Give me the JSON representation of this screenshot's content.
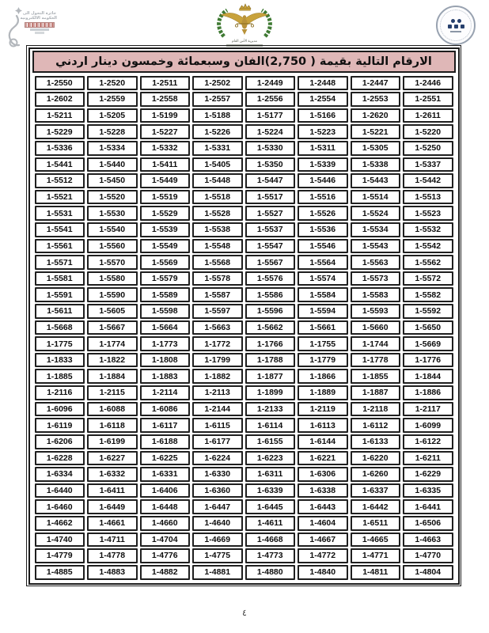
{
  "header": {
    "award_logo": {
      "icon": "egov-award-logo",
      "lines": [
        "جائزة التحول الى",
        "الحكومة الالكترونية"
      ]
    },
    "emblem": {
      "icon": "jordan-public-security-emblem",
      "caption": "مديرية الأمن العام"
    },
    "seal": {
      "icon": "round-certification-seal"
    }
  },
  "title": {
    "text": "الارقام التالية بقيمة  ( 2,750)الفان وسبعمائة وخمسون دينار اردني",
    "amount": "2,750",
    "background_color": "#dfb7b7"
  },
  "table": {
    "columns": 8,
    "rows": [
      [
        "1-2550",
        "1-2520",
        "1-2511",
        "1-2502",
        "1-2449",
        "1-2448",
        "1-2447",
        "1-2446"
      ],
      [
        "1-2602",
        "1-2559",
        "1-2558",
        "1-2557",
        "1-2556",
        "1-2554",
        "1-2553",
        "1-2551"
      ],
      [
        "1-5211",
        "1-5205",
        "1-5199",
        "1-5188",
        "1-5177",
        "1-5166",
        "1-2620",
        "1-2611"
      ],
      [
        "1-5229",
        "1-5228",
        "1-5227",
        "1-5226",
        "1-5224",
        "1-5223",
        "1-5221",
        "1-5220"
      ],
      [
        "1-5336",
        "1-5334",
        "1-5332",
        "1-5331",
        "1-5330",
        "1-5311",
        "1-5305",
        "1-5250"
      ],
      [
        "1-5441",
        "1-5440",
        "1-5411",
        "1-5405",
        "1-5350",
        "1-5339",
        "1-5338",
        "1-5337"
      ],
      [
        "1-5512",
        "1-5450",
        "1-5449",
        "1-5448",
        "1-5447",
        "1-5446",
        "1-5443",
        "1-5442"
      ],
      [
        "1-5521",
        "1-5520",
        "1-5519",
        "1-5518",
        "1-5517",
        "1-5516",
        "1-5514",
        "1-5513"
      ],
      [
        "1-5531",
        "1-5530",
        "1-5529",
        "1-5528",
        "1-5527",
        "1-5526",
        "1-5524",
        "1-5523"
      ],
      [
        "1-5541",
        "1-5540",
        "1-5539",
        "1-5538",
        "1-5537",
        "1-5536",
        "1-5534",
        "1-5532"
      ],
      [
        "1-5561",
        "1-5560",
        "1-5549",
        "1-5548",
        "1-5547",
        "1-5546",
        "1-5543",
        "1-5542"
      ],
      [
        "1-5571",
        "1-5570",
        "1-5569",
        "1-5568",
        "1-5567",
        "1-5564",
        "1-5563",
        "1-5562"
      ],
      [
        "1-5581",
        "1-5580",
        "1-5579",
        "1-5578",
        "1-5576",
        "1-5574",
        "1-5573",
        "1-5572"
      ],
      [
        "1-5591",
        "1-5590",
        "1-5589",
        "1-5587",
        "1-5586",
        "1-5584",
        "1-5583",
        "1-5582"
      ],
      [
        "1-5611",
        "1-5605",
        "1-5598",
        "1-5597",
        "1-5596",
        "1-5594",
        "1-5593",
        "1-5592"
      ],
      [
        "1-5668",
        "1-5667",
        "1-5664",
        "1-5663",
        "1-5662",
        "1-5661",
        "1-5660",
        "1-5650"
      ],
      [
        "1-1775",
        "1-1774",
        "1-1773",
        "1-1772",
        "1-1766",
        "1-1755",
        "1-1744",
        "1-5669"
      ],
      [
        "1-1833",
        "1-1822",
        "1-1808",
        "1-1799",
        "1-1788",
        "1-1779",
        "1-1778",
        "1-1776"
      ],
      [
        "1-1885",
        "1-1884",
        "1-1883",
        "1-1882",
        "1-1877",
        "1-1866",
        "1-1855",
        "1-1844"
      ],
      [
        "1-2116",
        "1-2115",
        "1-2114",
        "1-2113",
        "1-1899",
        "1-1889",
        "1-1887",
        "1-1886"
      ],
      [
        "1-6096",
        "1-6088",
        "1-6086",
        "1-2144",
        "1-2133",
        "1-2119",
        "1-2118",
        "1-2117"
      ],
      [
        "1-6119",
        "1-6118",
        "1-6117",
        "1-6115",
        "1-6114",
        "1-6113",
        "1-6112",
        "1-6099"
      ],
      [
        "1-6206",
        "1-6199",
        "1-6188",
        "1-6177",
        "1-6155",
        "1-6144",
        "1-6133",
        "1-6122"
      ],
      [
        "1-6228",
        "1-6227",
        "1-6225",
        "1-6224",
        "1-6223",
        "1-6221",
        "1-6220",
        "1-6211"
      ],
      [
        "1-6334",
        "1-6332",
        "1-6331",
        "1-6330",
        "1-6311",
        "1-6306",
        "1-6260",
        "1-6229"
      ],
      [
        "1-6440",
        "1-6411",
        "1-6406",
        "1-6360",
        "1-6339",
        "1-6338",
        "1-6337",
        "1-6335"
      ],
      [
        "1-6460",
        "1-6449",
        "1-6448",
        "1-6447",
        "1-6445",
        "1-6443",
        "1-6442",
        "1-6441"
      ],
      [
        "1-4662",
        "1-4661",
        "1-4660",
        "1-4640",
        "1-4611",
        "1-4604",
        "1-6511",
        "1-6506"
      ],
      [
        "1-4740",
        "1-4711",
        "1-4704",
        "1-4669",
        "1-4668",
        "1-4667",
        "1-4665",
        "1-4663"
      ],
      [
        "1-4779",
        "1-4778",
        "1-4776",
        "1-4775",
        "1-4773",
        "1-4772",
        "1-4771",
        "1-4770"
      ],
      [
        "1-4885",
        "1-4883",
        "1-4882",
        "1-4881",
        "1-4880",
        "1-4840",
        "1-4811",
        "1-4804"
      ]
    ]
  },
  "footer": {
    "page_number": "٤"
  },
  "colors": {
    "title_bar": "#dfb7b7",
    "cell_border": "#1f1f1f",
    "wreath_green": "#3f7a33",
    "emblem_gold": "#c8a23c",
    "seal_dot_blue": "#27406d"
  }
}
